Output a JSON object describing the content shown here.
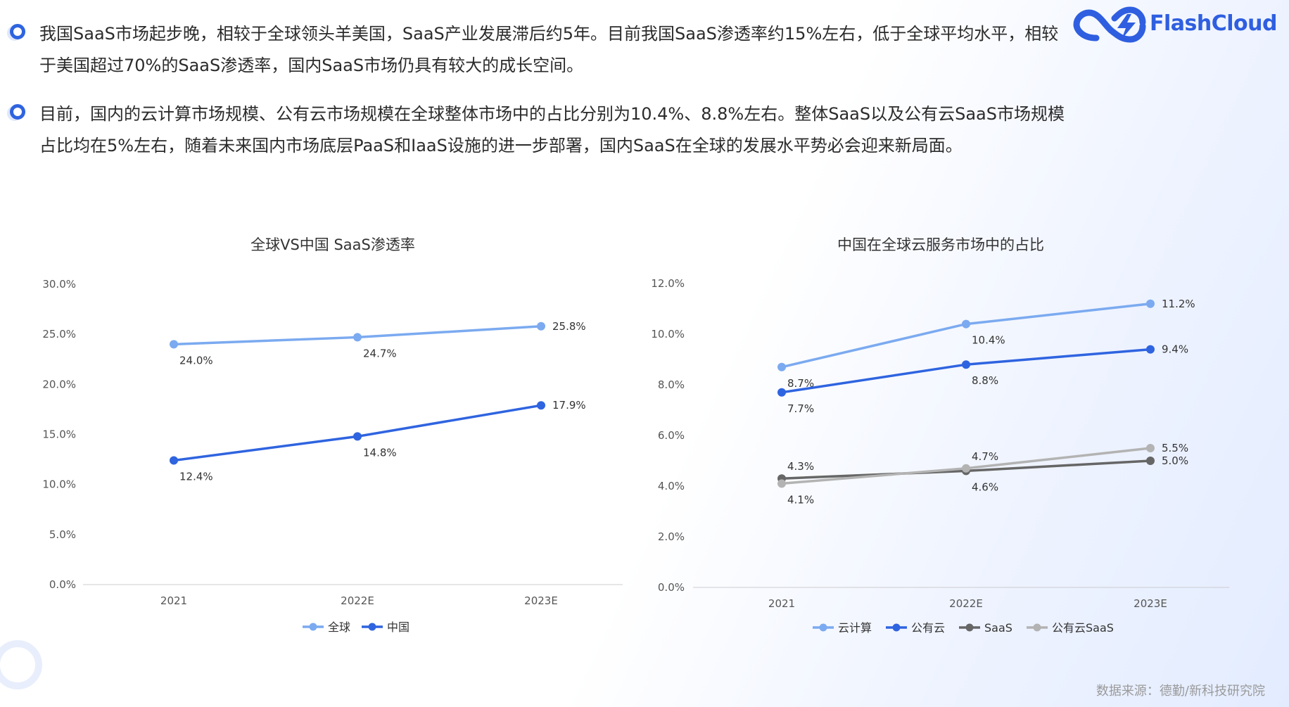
{
  "bullets": [
    "我国SaaS市场起步晚，相较于全球领头羊美国，SaaS产业发展滞后约5年。目前我国SaaS渗透率约15%左右，低于全球平均水平，相较于美国超过70%的SaaS渗透率，国内SaaS市场仍具有较大的成长空间。",
    "目前，国内的云计算市场规模、公有云市场规模在全球整体市场中的占比分别为10.4%、8.8%左右。整体SaaS以及公有云SaaS市场规模占比均在5%左右，随着未来国内市场底层PaaS和IaaS设施的进一步部署，国内SaaS在全球的发展水平势必会迎来新局面。"
  ],
  "brand": {
    "name": "FlashCloud",
    "logo_icon": "infinity-lightning-logo",
    "color": "#2f5fe0"
  },
  "source": "数据来源：德勤/新科技研究院",
  "chart_data": [
    {
      "type": "line",
      "title": "全球VS中国 SaaS渗透率",
      "categories": [
        "2021",
        "2022E",
        "2023E"
      ],
      "ylim": [
        0,
        30
      ],
      "yticks": [
        "0.0%",
        "5.0%",
        "10.0%",
        "15.0%",
        "20.0%",
        "25.0%",
        "30.0%"
      ],
      "series": [
        {
          "name": "全球",
          "color": "#7baaf0",
          "values": [
            24.0,
            24.7,
            25.8
          ],
          "labels": [
            "24.0%",
            "24.7%",
            "25.8%"
          ],
          "label_pos": [
            "below",
            "below",
            "right"
          ]
        },
        {
          "name": "中国",
          "color": "#2f64e0",
          "values": [
            12.4,
            14.8,
            17.9
          ],
          "labels": [
            "12.4%",
            "14.8%",
            "17.9%"
          ],
          "label_pos": [
            "below",
            "below",
            "right"
          ]
        }
      ]
    },
    {
      "type": "line",
      "title": "中国在全球云服务市场中的占比",
      "categories": [
        "2021",
        "2022E",
        "2023E"
      ],
      "ylim": [
        0,
        12
      ],
      "yticks": [
        "0.0%",
        "2.0%",
        "4.0%",
        "6.0%",
        "8.0%",
        "10.0%",
        "12.0%"
      ],
      "series": [
        {
          "name": "云计算",
          "color": "#7baaf0",
          "values": [
            8.7,
            10.4,
            11.2
          ],
          "labels": [
            "8.7%",
            "10.4%",
            "11.2%"
          ],
          "label_pos": [
            "below",
            "below",
            "right"
          ]
        },
        {
          "name": "公有云",
          "color": "#2f64e0",
          "values": [
            7.7,
            8.8,
            9.4
          ],
          "labels": [
            "7.7%",
            "8.8%",
            "9.4%"
          ],
          "label_pos": [
            "below",
            "below",
            "right"
          ]
        },
        {
          "name": "SaaS",
          "color": "#666666",
          "values": [
            4.3,
            4.6,
            5.0
          ],
          "labels": [
            "4.3%",
            "4.6%",
            "5.0%"
          ],
          "label_pos": [
            "above",
            "below",
            "right"
          ]
        },
        {
          "name": "公有云SaaS",
          "color": "#b3b3b3",
          "values": [
            4.1,
            4.7,
            5.5
          ],
          "labels": [
            "4.1%",
            "4.7%",
            "5.5%"
          ],
          "label_pos": [
            "below",
            "above",
            "right"
          ]
        }
      ]
    }
  ]
}
